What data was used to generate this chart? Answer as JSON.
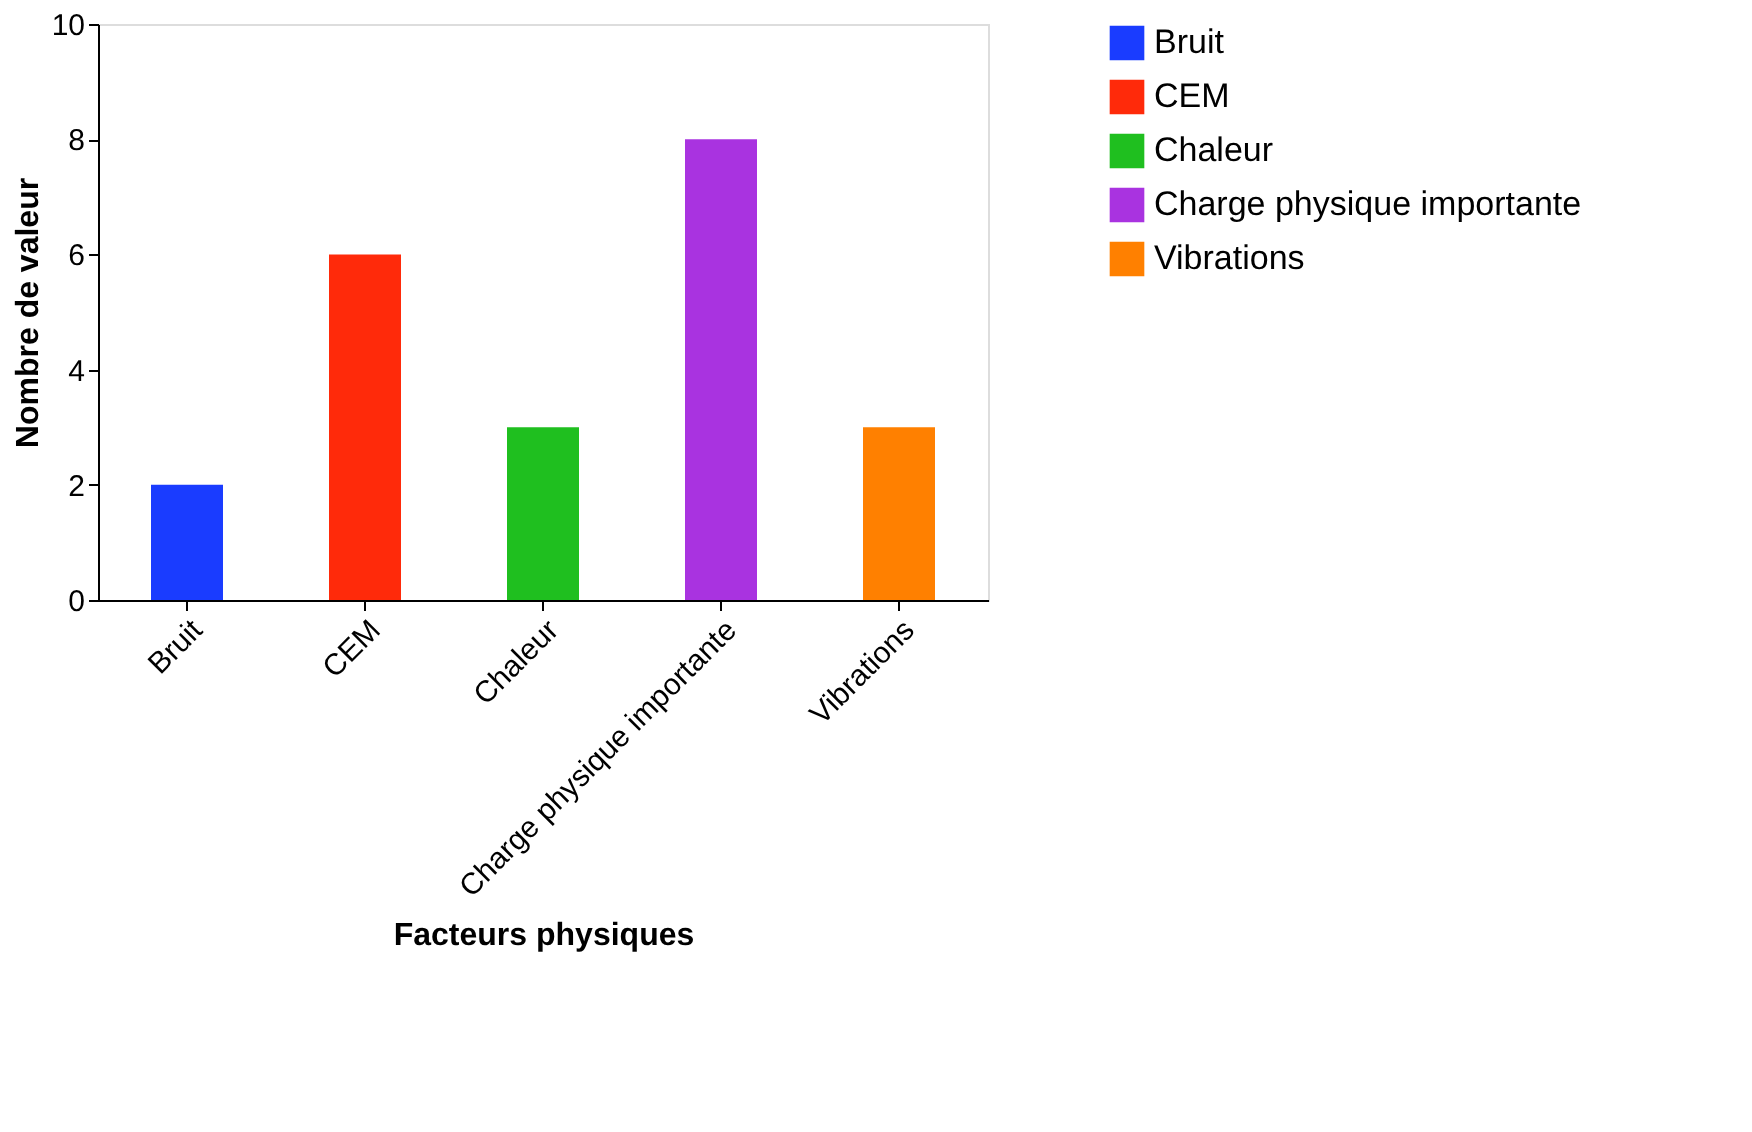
{
  "chart_data": {
    "type": "bar",
    "xlabel": "Facteurs physiques",
    "ylabel": "Nombre de valeur",
    "categories": [
      "Bruit",
      "CEM",
      "Chaleur",
      "Charge physique importante",
      "Vibrations"
    ],
    "series": [
      {
        "name": "Bruit",
        "color": "#1a3cff",
        "values": [
          2,
          null,
          null,
          null,
          null
        ]
      },
      {
        "name": "CEM",
        "color": "#ff2a0a",
        "values": [
          null,
          6,
          null,
          null,
          null
        ]
      },
      {
        "name": "Chaleur",
        "color": "#1fbf1f",
        "values": [
          null,
          null,
          3,
          null,
          null
        ]
      },
      {
        "name": "Charge physique importante",
        "color": "#a933e0",
        "values": [
          null,
          null,
          null,
          8,
          null
        ]
      },
      {
        "name": "Vibrations",
        "color": "#ff8000",
        "values": [
          null,
          null,
          null,
          null,
          3
        ]
      }
    ],
    "ylim": [
      0,
      10
    ],
    "yticks": [
      0,
      2,
      4,
      6,
      8,
      10
    ],
    "grid": false,
    "legend": "top right"
  }
}
